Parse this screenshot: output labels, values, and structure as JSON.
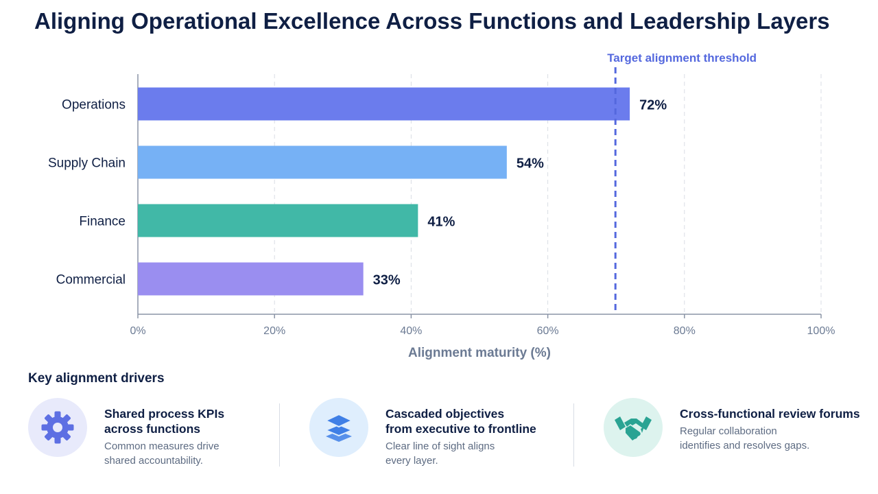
{
  "title": "Aligning Operational Excellence Across Functions and Leadership Layers",
  "chart_data": {
    "type": "bar",
    "orientation": "horizontal",
    "categories": [
      "Operations",
      "Supply Chain",
      "Finance",
      "Commercial"
    ],
    "values": [
      72,
      54,
      41,
      33
    ],
    "value_labels": [
      "72%",
      "54%",
      "41%",
      "33%"
    ],
    "colors": [
      "#6b7ced",
      "#76b1f5",
      "#41b8a7",
      "#9a8ef0"
    ],
    "xlabel": "Alignment maturity (%)",
    "ylabel": "",
    "xlim": [
      0,
      100
    ],
    "xticks": [
      0,
      20,
      40,
      60,
      80,
      100
    ],
    "xtick_labels": [
      "0%",
      "20%",
      "40%",
      "60%",
      "80%",
      "100%"
    ],
    "grid": "vertical dashed",
    "reference_line": {
      "value": 70,
      "label": "Target alignment threshold",
      "color": "#5468de",
      "style": "dashed"
    }
  },
  "drivers": {
    "title": "Key alignment drivers",
    "items": [
      {
        "icon": "gear-icon",
        "heading": "Shared process KPIs\nacross functions",
        "description": "Common measures drive\nshared accountability.",
        "icon_bg": "#e8eafb",
        "icon_color": "#5d6fe3"
      },
      {
        "icon": "layers-icon",
        "heading": "Cascaded objectives\nfrom executive to frontline",
        "description": "Clear line of sight aligns\nevery layer.",
        "icon_bg": "#dfeefd",
        "icon_color": "#3f7fe6"
      },
      {
        "icon": "handshake-icon",
        "heading": "Cross-functional review forums",
        "description": "Regular collaboration\nidentifies and resolves gaps.",
        "icon_bg": "#ddf3ee",
        "icon_color": "#2aa393"
      }
    ]
  }
}
